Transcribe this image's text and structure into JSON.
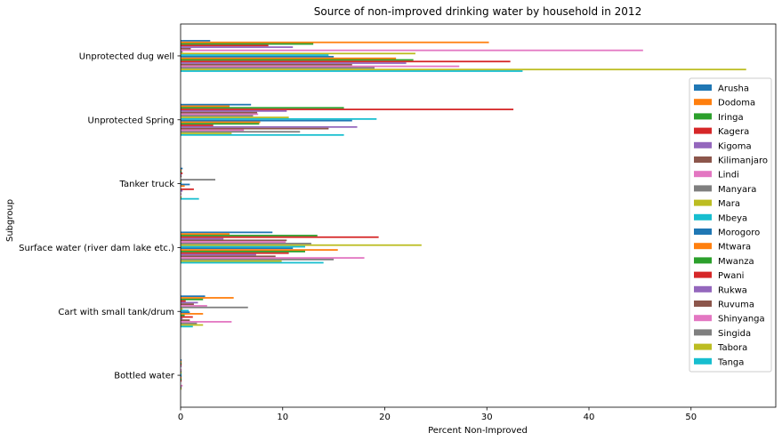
{
  "chart_data": {
    "type": "bar",
    "orientation": "horizontal",
    "title": "Source of non-improved drinking water by household in 2012",
    "xlabel": "Percent Non-Improved",
    "ylabel": "Subgroup",
    "xlim": [
      0,
      58.3
    ],
    "xticks": [
      0,
      10,
      20,
      30,
      40,
      50
    ],
    "grid": false,
    "legend_position": "right",
    "categories": [
      "Bottled water",
      "Cart with small tank/drum",
      "Surface water (river dam lake etc.)",
      "Tanker truck",
      "Unprotected Spring",
      "Unprotected dug well"
    ],
    "series": [
      {
        "name": "Arusha",
        "color": "#1f77b4",
        "values": [
          0.1,
          2.4,
          9.0,
          0.2,
          6.9,
          2.9
        ]
      },
      {
        "name": "Dodoma",
        "color": "#ff7f0e",
        "values": [
          0.1,
          5.2,
          4.8,
          0.1,
          4.8,
          30.2
        ]
      },
      {
        "name": "Iringa",
        "color": "#2ca02c",
        "values": [
          0.1,
          2.2,
          13.4,
          0.1,
          16.0,
          13.0
        ]
      },
      {
        "name": "Kagera",
        "color": "#d62728",
        "values": [
          0.1,
          0.5,
          19.4,
          0.2,
          32.6,
          8.6
        ]
      },
      {
        "name": "Kigoma",
        "color": "#9467bd",
        "values": [
          0.1,
          1.7,
          4.2,
          0.1,
          10.4,
          11.0
        ]
      },
      {
        "name": "Kilimanjaro",
        "color": "#8c564b",
        "values": [
          0.0,
          1.3,
          10.4,
          0.1,
          7.5,
          1.0
        ]
      },
      {
        "name": "Lindi",
        "color": "#e377c2",
        "values": [
          0.1,
          2.6,
          10.3,
          0.0,
          7.6,
          45.3
        ]
      },
      {
        "name": "Manyara",
        "color": "#7f7f7f",
        "values": [
          0.1,
          6.6,
          12.8,
          3.4,
          7.1,
          0.2
        ]
      },
      {
        "name": "Mara",
        "color": "#bcbd22",
        "values": [
          0.1,
          0.2,
          23.6,
          0.1,
          10.6,
          23.0
        ]
      },
      {
        "name": "Mbeya",
        "color": "#17becf",
        "values": [
          0.1,
          0.8,
          12.2,
          0.1,
          19.2,
          14.5
        ]
      },
      {
        "name": "Morogoro",
        "color": "#1f77b4",
        "values": [
          0.1,
          0.9,
          11.0,
          0.9,
          16.8,
          15.0
        ]
      },
      {
        "name": "Mtwara",
        "color": "#ff7f0e",
        "values": [
          0.1,
          2.2,
          15.4,
          0.4,
          7.8,
          21.1
        ]
      },
      {
        "name": "Mwanza",
        "color": "#2ca02c",
        "values": [
          0.1,
          0.4,
          12.2,
          0.0,
          7.7,
          22.8
        ]
      },
      {
        "name": "Pwani",
        "color": "#d62728",
        "values": [
          0.1,
          1.2,
          10.6,
          1.3,
          3.2,
          32.3
        ]
      },
      {
        "name": "Rukwa",
        "color": "#9467bd",
        "values": [
          0.0,
          0.2,
          7.4,
          0.2,
          17.3,
          22.1
        ]
      },
      {
        "name": "Ruvuma",
        "color": "#8c564b",
        "values": [
          0.0,
          0.9,
          9.3,
          0.0,
          14.5,
          16.8
        ]
      },
      {
        "name": "Shinyanga",
        "color": "#e377c2",
        "values": [
          0.2,
          5.0,
          18.0,
          0.1,
          6.2,
          27.3
        ]
      },
      {
        "name": "Singida",
        "color": "#7f7f7f",
        "values": [
          0.1,
          1.6,
          15.0,
          0.0,
          11.7,
          19.0
        ]
      },
      {
        "name": "Tabora",
        "color": "#bcbd22",
        "values": [
          0.1,
          2.2,
          9.9,
          0.1,
          5.0,
          55.4
        ]
      },
      {
        "name": "Tanga",
        "color": "#17becf",
        "values": [
          0.0,
          1.2,
          14.0,
          1.8,
          16.0,
          33.5
        ]
      }
    ]
  }
}
